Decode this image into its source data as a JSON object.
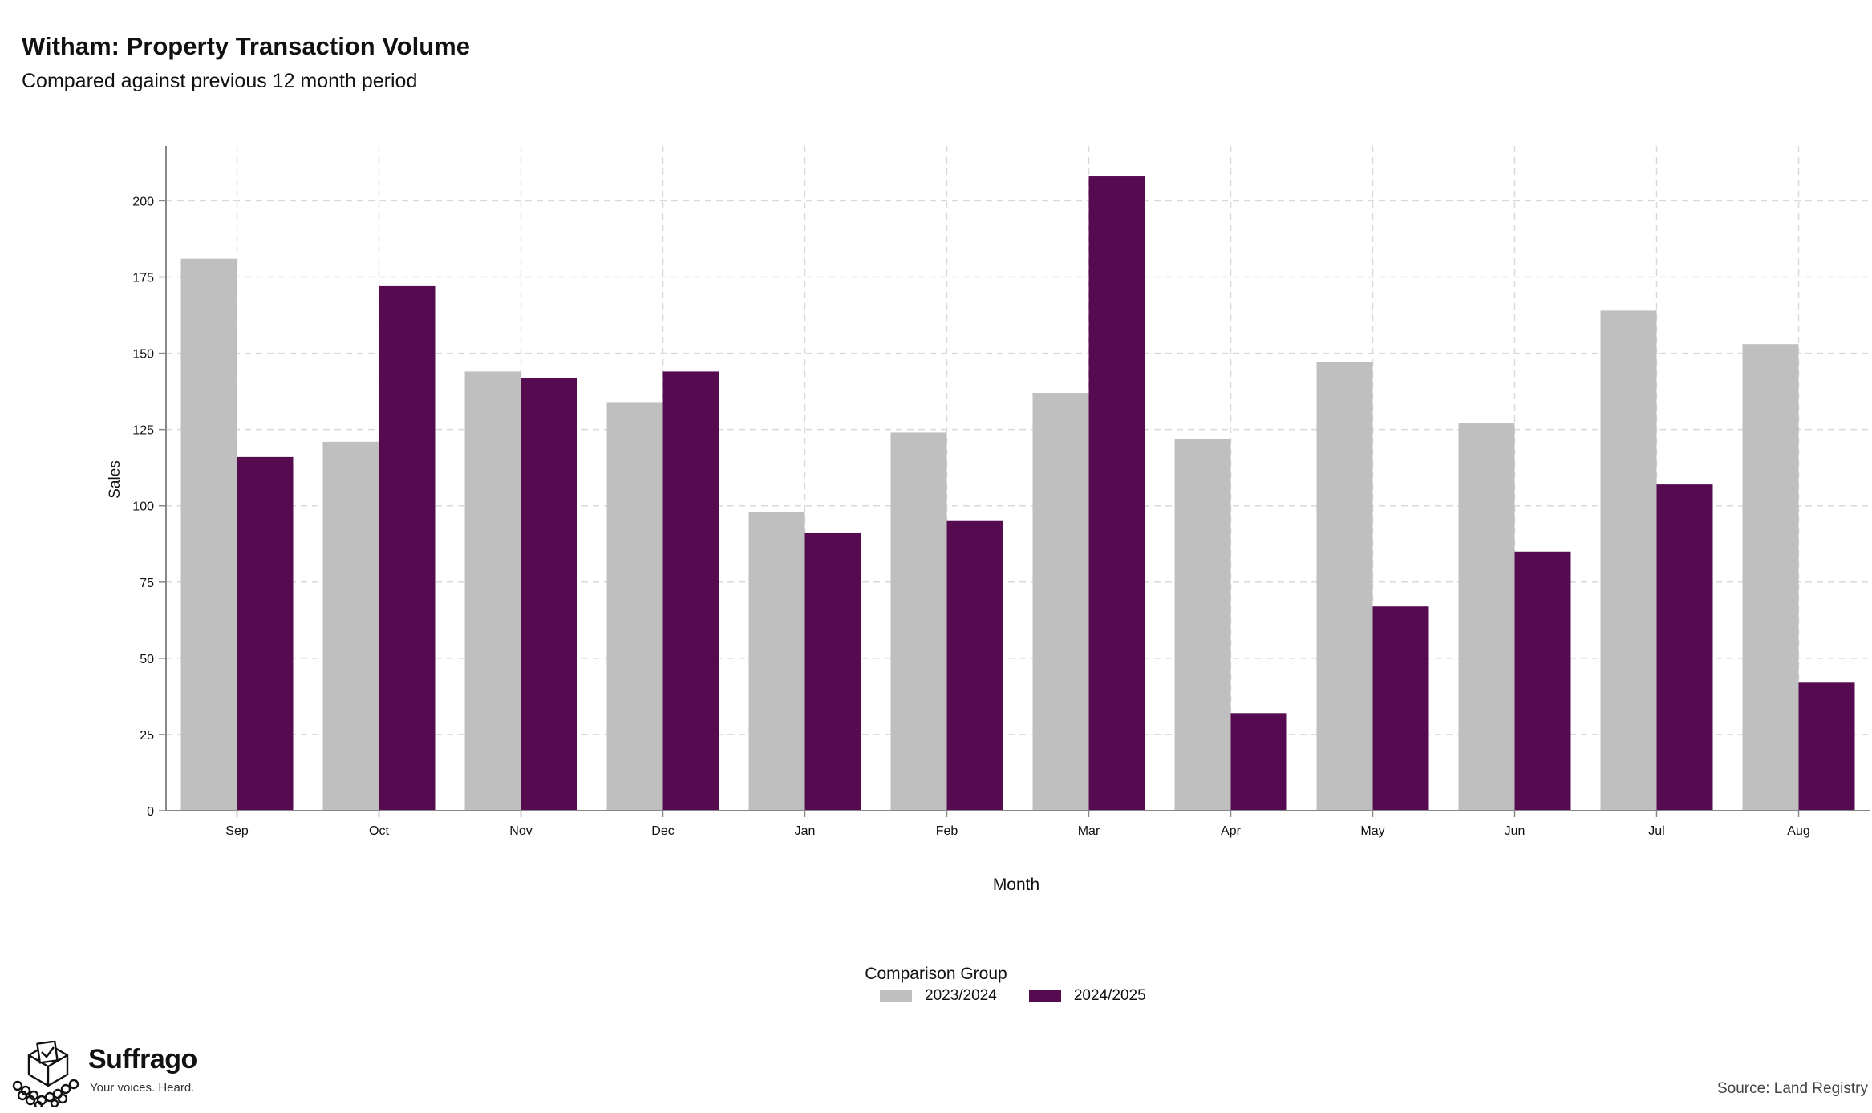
{
  "header": {
    "title": "Witham: Property Transaction Volume",
    "subtitle": "Compared against previous 12 month period"
  },
  "legend": {
    "title": "Comparison Group",
    "items": [
      {
        "label": "2023/2024",
        "color": "#bfbfbf"
      },
      {
        "label": "2024/2025",
        "color": "#560b51"
      }
    ]
  },
  "brand": {
    "name": "Suffrago",
    "tagline": "Your voices. Heard.",
    "icon": "ballot-box-icon"
  },
  "footer": {
    "source": "Source: Land Registry"
  },
  "chart_data": {
    "type": "bar",
    "title": "Witham: Property Transaction Volume",
    "subtitle": "Compared against previous 12 month period",
    "xlabel": "Month",
    "ylabel": "Sales",
    "categories": [
      "Sep",
      "Oct",
      "Nov",
      "Dec",
      "Jan",
      "Feb",
      "Mar",
      "Apr",
      "May",
      "Jun",
      "Jul",
      "Aug"
    ],
    "series": [
      {
        "name": "2023/2024",
        "color": "#bfbfbf",
        "values": [
          181,
          121,
          144,
          134,
          98,
          124,
          137,
          122,
          147,
          127,
          164,
          153
        ]
      },
      {
        "name": "2024/2025",
        "color": "#560b51",
        "values": [
          116,
          172,
          142,
          144,
          91,
          95,
          208,
          32,
          67,
          85,
          107,
          42
        ]
      }
    ],
    "ylim": [
      0,
      218
    ],
    "yticks": [
      0,
      25,
      50,
      75,
      100,
      125,
      150,
      175,
      200
    ],
    "grid": true,
    "legend_position": "bottom"
  }
}
